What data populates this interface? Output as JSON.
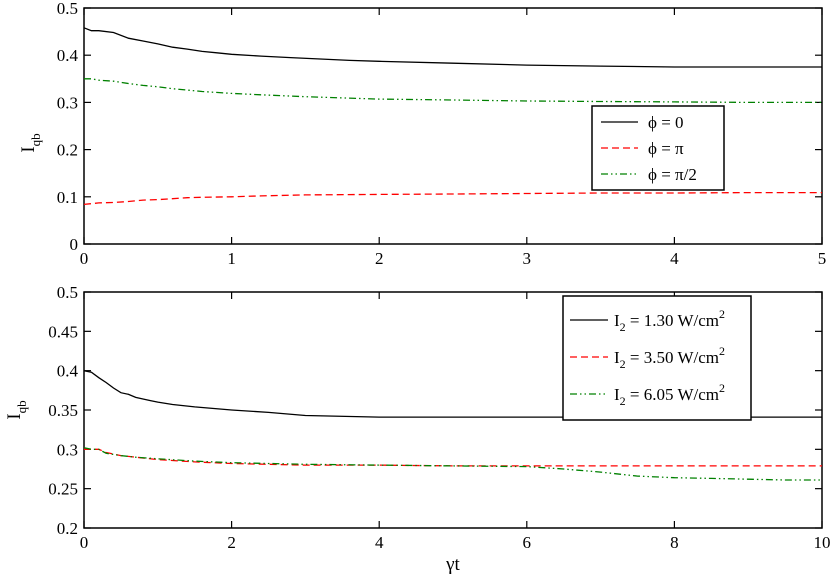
{
  "chart_data": [
    {
      "type": "line",
      "xlabel": "",
      "ylabel": "I_qb",
      "ylabel_main": "I",
      "ylabel_sub": "qb",
      "xlim": [
        0,
        5
      ],
      "ylim": [
        0,
        0.5
      ],
      "xticks": [
        0,
        1,
        2,
        3,
        4,
        5
      ],
      "yticks": [
        0,
        0.1,
        0.2,
        0.3,
        0.4,
        0.5
      ],
      "xtick_labels": [
        "0",
        "1",
        "2",
        "3",
        "4",
        "5"
      ],
      "ytick_labels": [
        "0",
        "0.1",
        "0.2",
        "0.3",
        "0.4",
        "0.5"
      ],
      "legend_position": "center-right",
      "series": [
        {
          "name": "ϕ = 0",
          "color": "#000000",
          "dash": "solid",
          "x": [
            0,
            0.05,
            0.1,
            0.2,
            0.3,
            0.4,
            0.5,
            0.6,
            0.7,
            0.8,
            0.9,
            1.0,
            1.2,
            1.4,
            1.6,
            1.8,
            2.0,
            2.5,
            3.0,
            3.5,
            4.0,
            4.5,
            5.0
          ],
          "y": [
            0.458,
            0.452,
            0.452,
            0.448,
            0.436,
            0.43,
            0.424,
            0.417,
            0.413,
            0.408,
            0.405,
            0.402,
            0.398,
            0.395,
            0.392,
            0.389,
            0.387,
            0.383,
            0.379,
            0.377,
            0.375,
            0.375,
            0.375
          ]
        },
        {
          "name": "ϕ = π",
          "color": "#ff0000",
          "dash": "dashed",
          "x": [
            0,
            0.1,
            0.2,
            0.3,
            0.4,
            0.5,
            0.6,
            0.7,
            0.8,
            1.0,
            1.2,
            1.5,
            2.0,
            2.5,
            3.0,
            3.5,
            4.0,
            4.5,
            5.0
          ],
          "y": [
            0.084,
            0.087,
            0.088,
            0.09,
            0.093,
            0.094,
            0.096,
            0.098,
            0.099,
            0.1,
            0.102,
            0.104,
            0.105,
            0.106,
            0.107,
            0.108,
            0.108,
            0.109,
            0.109
          ]
        },
        {
          "name": "ϕ = π/2",
          "color": "#008000",
          "dash": "dash-dot-dot",
          "x": [
            0,
            0.05,
            0.1,
            0.2,
            0.3,
            0.4,
            0.5,
            0.6,
            0.7,
            0.8,
            1.0,
            1.2,
            1.5,
            2.0,
            2.5,
            3.0,
            3.5,
            4.0,
            4.5,
            5.0
          ],
          "y": [
            0.35,
            0.35,
            0.347,
            0.345,
            0.34,
            0.336,
            0.333,
            0.329,
            0.326,
            0.323,
            0.319,
            0.316,
            0.312,
            0.307,
            0.305,
            0.303,
            0.302,
            0.301,
            0.3,
            0.3
          ]
        }
      ]
    },
    {
      "type": "line",
      "xlabel": "γt",
      "ylabel": "I_qb",
      "ylabel_main": "I",
      "ylabel_sub": "qb",
      "xlim": [
        0,
        10
      ],
      "ylim": [
        0.2,
        0.5
      ],
      "xticks": [
        0,
        2,
        4,
        6,
        8,
        10
      ],
      "yticks": [
        0.2,
        0.25,
        0.3,
        0.35,
        0.4,
        0.45,
        0.5
      ],
      "xtick_labels": [
        "0",
        "2",
        "4",
        "6",
        "8",
        "10"
      ],
      "ytick_labels": [
        "0.2",
        "0.25",
        "0.3",
        "0.35",
        "0.4",
        "0.45",
        "0.5"
      ],
      "legend_position": "top-right",
      "series": [
        {
          "name": "I2 = 1.30 W/cm2",
          "label_parts": [
            "I",
            "2",
            " = 1.30 W/cm",
            "2"
          ],
          "color": "#000000",
          "dash": "solid",
          "x": [
            0,
            0.1,
            0.2,
            0.3,
            0.4,
            0.5,
            0.6,
            0.7,
            0.8,
            0.9,
            1.0,
            1.2,
            1.5,
            2.0,
            2.5,
            3.0,
            4.0,
            5.0,
            6.0,
            7.0,
            8.0,
            9.0,
            10.0
          ],
          "y": [
            0.4,
            0.398,
            0.391,
            0.385,
            0.378,
            0.372,
            0.37,
            0.366,
            0.364,
            0.362,
            0.36,
            0.357,
            0.354,
            0.35,
            0.347,
            0.343,
            0.341,
            0.341,
            0.341,
            0.341,
            0.341,
            0.341,
            0.341
          ]
        },
        {
          "name": "I2 = 3.50 W/cm2",
          "label_parts": [
            "I",
            "2",
            " = 3.50 W/cm",
            "2"
          ],
          "color": "#ff0000",
          "dash": "dashed",
          "x": [
            0,
            0.1,
            0.2,
            0.3,
            0.5,
            0.7,
            1.0,
            1.5,
            2.0,
            2.5,
            3.0,
            4.0,
            5.0,
            6.0,
            7.0,
            8.0,
            9.0,
            10.0
          ],
          "y": [
            0.3,
            0.3,
            0.3,
            0.296,
            0.292,
            0.29,
            0.287,
            0.284,
            0.282,
            0.281,
            0.28,
            0.28,
            0.279,
            0.279,
            0.279,
            0.279,
            0.279,
            0.279
          ]
        },
        {
          "name": "I2 = 6.05 W/cm2",
          "label_parts": [
            "I",
            "2",
            " = 6.05 W/cm",
            "2"
          ],
          "color": "#008000",
          "dash": "dash-dot-dot",
          "x": [
            0,
            0.1,
            0.2,
            0.3,
            0.5,
            0.7,
            1.0,
            1.5,
            2.0,
            2.5,
            3.0,
            4.0,
            5.0,
            6.0,
            6.5,
            7.0,
            7.5,
            8.0,
            8.5,
            9.0,
            9.5,
            10.0
          ],
          "y": [
            0.302,
            0.3,
            0.3,
            0.295,
            0.292,
            0.29,
            0.288,
            0.285,
            0.283,
            0.282,
            0.281,
            0.28,
            0.279,
            0.278,
            0.275,
            0.271,
            0.266,
            0.264,
            0.263,
            0.262,
            0.261,
            0.261
          ]
        }
      ]
    }
  ]
}
